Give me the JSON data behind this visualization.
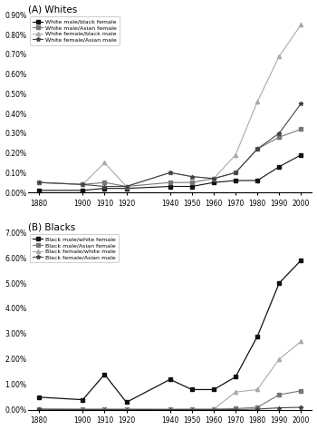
{
  "years": [
    1880,
    1900,
    1910,
    1920,
    1940,
    1950,
    1960,
    1970,
    1980,
    1990,
    2000
  ],
  "whites": {
    "wm_bf": [
      0.0001,
      0.0001,
      0.0002,
      0.0002,
      0.0003,
      0.0003,
      0.0005,
      0.0006,
      0.0006,
      0.0013,
      0.0019
    ],
    "wm_af": [
      0.0005,
      0.0004,
      0.0005,
      0.0003,
      0.0005,
      0.0005,
      0.0007,
      0.001,
      0.0022,
      0.0028,
      0.0032
    ],
    "wf_bm": [
      0.0005,
      0.0004,
      0.0015,
      0.0003,
      0.001,
      0.0008,
      0.0007,
      0.0019,
      0.0046,
      0.0069,
      0.0085
    ],
    "wf_am": [
      0.0005,
      0.0004,
      0.0003,
      0.0003,
      0.001,
      0.0008,
      0.0007,
      0.001,
      0.0022,
      0.003,
      0.0045
    ]
  },
  "blacks": {
    "bm_wf": [
      0.005,
      0.004,
      0.014,
      0.003,
      0.012,
      0.008,
      0.008,
      0.013,
      0.029,
      0.05,
      0.059
    ],
    "bm_af": [
      0.0003,
      0.0003,
      0.0003,
      0.0003,
      0.0002,
      0.0003,
      0.0003,
      0.0005,
      0.001,
      0.006,
      0.0075
    ],
    "bf_wm": [
      0.0003,
      0.0003,
      0.0003,
      0.0003,
      0.0003,
      0.0003,
      0.0003,
      0.007,
      0.008,
      0.02,
      0.027
    ],
    "bf_am": [
      0.0002,
      0.0001,
      0.0001,
      0.0001,
      0.0001,
      0.0001,
      0.0001,
      0.0001,
      0.0003,
      0.0008,
      0.001
    ]
  },
  "panel_A_title": "(A) Whites",
  "panel_B_title": "(B) Blacks",
  "legend_A": [
    "White male/black female",
    "White male/Asian female",
    "White female/black male",
    "White female/Asian male"
  ],
  "legend_B": [
    "Black male/white female",
    "Black male/Asian female",
    "Black female/white male",
    "Black female/Asian male"
  ],
  "ylim_A": [
    0.0,
    0.009
  ],
  "ylim_B": [
    0.0,
    0.07
  ]
}
